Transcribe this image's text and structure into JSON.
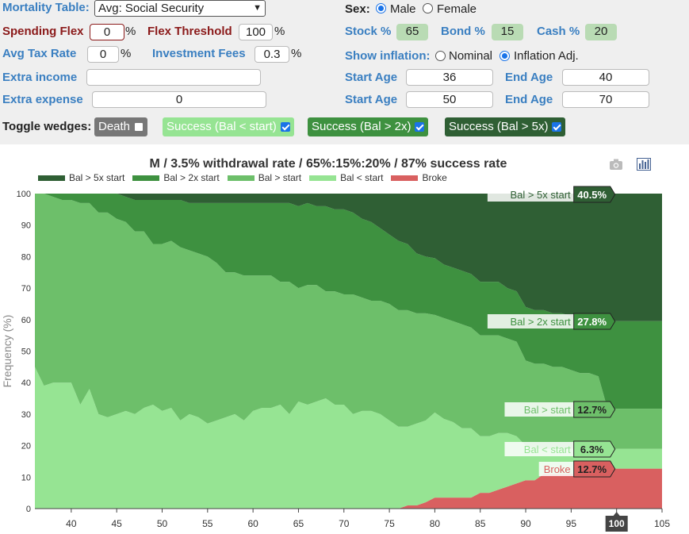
{
  "controls": {
    "mortality_label": "Mortality Table:",
    "mortality_value": "Avg: Social Security",
    "spending_flex_label": "Spending Flex",
    "spending_flex_value": "0",
    "flex_threshold_label": "Flex Threshold",
    "flex_threshold_value": "100",
    "avg_tax_label": "Avg Tax Rate",
    "avg_tax_value": "0",
    "inv_fees_label": "Investment Fees",
    "inv_fees_value": "0.3",
    "extra_income_label": "Extra income",
    "extra_income_value": "",
    "extra_expense_label": "Extra expense",
    "extra_expense_value": "0",
    "pct": "%",
    "sex_label": "Sex:",
    "sex_male": "Male",
    "sex_female": "Female",
    "stock_label": "Stock %",
    "stock_value": "65",
    "bond_label": "Bond %",
    "bond_value": "15",
    "cash_label": "Cash %",
    "cash_value": "20",
    "inflation_label": "Show inflation:",
    "inflation_nominal": "Nominal",
    "inflation_adj": "Inflation Adj.",
    "start_age_label": "Start Age",
    "end_age_label": "End Age",
    "start_age_1": "36",
    "end_age_1": "40",
    "start_age_2": "50",
    "end_age_2": "70",
    "toggle_label": "Toggle wedges:",
    "wedge_death": "Death",
    "wedge_lt_start": "Success (Bal < start)",
    "wedge_gt_2x": "Success (Bal > 2x)",
    "wedge_gt_5x": "Success (Bal > 5x)"
  },
  "colors": {
    "gt5x": "#2f5f34",
    "gt2x": "#3e9140",
    "gtstart": "#6dbf6a",
    "ltstart": "#96e493",
    "broke": "#d96060"
  },
  "icons": {
    "camera": "camera-icon",
    "chart": "bar-chart-icon"
  },
  "chart_data": {
    "type": "area",
    "title": "M / 3.5% withdrawal rate / 65%:15%:20% / 87% success rate",
    "xlabel": "",
    "ylabel": "Frequency (%)",
    "xlim": [
      36,
      105
    ],
    "ylim": [
      0,
      100
    ],
    "xticks": [
      40,
      45,
      50,
      55,
      60,
      65,
      70,
      75,
      80,
      85,
      90,
      95,
      100,
      105
    ],
    "yticks": [
      0,
      10,
      20,
      30,
      40,
      50,
      60,
      70,
      80,
      90,
      100
    ],
    "highlight_x": 100,
    "legend_position": "top-left",
    "x": [
      36,
      37,
      38,
      39,
      40,
      41,
      42,
      43,
      44,
      45,
      46,
      47,
      48,
      49,
      50,
      51,
      52,
      53,
      54,
      55,
      56,
      57,
      58,
      59,
      60,
      61,
      62,
      63,
      64,
      65,
      66,
      67,
      68,
      69,
      70,
      71,
      72,
      73,
      74,
      75,
      76,
      77,
      78,
      79,
      80,
      81,
      82,
      83,
      84,
      85,
      86,
      87,
      88,
      89,
      90,
      91,
      92,
      93,
      94,
      95,
      96,
      97,
      98,
      99,
      100,
      101,
      102,
      103,
      104,
      105
    ],
    "series": [
      {
        "name": "Broke",
        "values": [
          0,
          0,
          0,
          0,
          0,
          0,
          0,
          0,
          0,
          0,
          0,
          0,
          0,
          0,
          0,
          0,
          0,
          0,
          0,
          0,
          0,
          0,
          0,
          0,
          0,
          0,
          0,
          0,
          0,
          0,
          0,
          0,
          0,
          0,
          0,
          0,
          0,
          0,
          0,
          0,
          0,
          1,
          1,
          2,
          3.5,
          3.5,
          3.5,
          3.5,
          3.5,
          5,
          5,
          6,
          7,
          8,
          9,
          9,
          11,
          11,
          11,
          11,
          11,
          11,
          11,
          12.7,
          12.7,
          12.7,
          12.7,
          12.7,
          12.7,
          12.7
        ]
      },
      {
        "name": "Bal < start",
        "values": [
          45,
          39,
          40,
          40,
          40,
          33,
          38,
          30,
          29,
          30,
          31,
          30,
          32,
          33,
          31,
          32,
          28,
          30,
          29,
          27,
          28,
          29,
          30,
          28,
          31,
          32,
          32,
          33,
          30,
          34,
          33,
          34,
          35,
          33,
          33,
          30,
          31,
          31,
          30,
          28,
          26,
          25,
          26,
          26,
          27,
          25,
          24,
          22,
          22,
          18,
          18,
          18,
          17,
          15,
          11,
          10,
          8,
          8,
          8,
          8,
          8,
          8,
          7,
          6.3,
          6.3,
          6.3,
          6.3,
          6.3,
          6.3,
          6.3
        ]
      },
      {
        "name": "Bal > start",
        "values": [
          55,
          61,
          59,
          58,
          58,
          64,
          59,
          64,
          65,
          62,
          60,
          58,
          56,
          51,
          53,
          53,
          55,
          52,
          52,
          53,
          50,
          46,
          45,
          46,
          43,
          42,
          42,
          39,
          42,
          36,
          38,
          37,
          34,
          36,
          35,
          38,
          36,
          35,
          36,
          37,
          37,
          37,
          35,
          34,
          31,
          32,
          32,
          33,
          32,
          32,
          32,
          31,
          30,
          30,
          27,
          27,
          27,
          26,
          26,
          25,
          24,
          24,
          24,
          12.7,
          12.7,
          12.7,
          12.7,
          12.7,
          12.7,
          12.7
        ]
      },
      {
        "name": "Bal > 2x start",
        "values": [
          0,
          0,
          1,
          2,
          2,
          3,
          3,
          6,
          6,
          8,
          8,
          10,
          10,
          14,
          14,
          13,
          15,
          15,
          16,
          17,
          19,
          22,
          22,
          23,
          23,
          23,
          23,
          25,
          25,
          26,
          26,
          25,
          27,
          26,
          27,
          26,
          25,
          25,
          23,
          22,
          22,
          21,
          19,
          18,
          18,
          17,
          17,
          17,
          17,
          17,
          17,
          17,
          16,
          16,
          17,
          17,
          17,
          17,
          17,
          17,
          17,
          17,
          17,
          27.8,
          27.8,
          27.8,
          27.8,
          27.8,
          27.8,
          27.8
        ]
      },
      {
        "name": "Bal > 5x start",
        "values": [
          0,
          0,
          0,
          0,
          0,
          0,
          0,
          0,
          0,
          0,
          1,
          2,
          2,
          2,
          2,
          2,
          2,
          3,
          3,
          3,
          3,
          3,
          3,
          3,
          3,
          3,
          3,
          3,
          3,
          4,
          3,
          4,
          4,
          5,
          5,
          6,
          8,
          9,
          11,
          13,
          15,
          16,
          19,
          20,
          20.5,
          22.5,
          23.5,
          24.5,
          25.5,
          28,
          28,
          28,
          30,
          31,
          36,
          37,
          37,
          38,
          38,
          39,
          40,
          40,
          41,
          40.5,
          40.5,
          40.5,
          40.5,
          40.5,
          40.5,
          40.5
        ]
      }
    ],
    "hover_labels": [
      {
        "series": "Bal > 5x start",
        "text": "Bal > 5x start",
        "value": "40.5%"
      },
      {
        "series": "Bal > 2x start",
        "text": "Bal > 2x start",
        "value": "27.8%"
      },
      {
        "series": "Bal > start",
        "text": "Bal > start",
        "value": "12.7%"
      },
      {
        "series": "Bal < start",
        "text": "Bal < start",
        "value": "6.3%"
      },
      {
        "series": "Broke",
        "text": "Broke",
        "value": "12.7%"
      }
    ],
    "legend": [
      {
        "series": "Bal > 5x start",
        "label": "Bal > 5x start"
      },
      {
        "series": "Bal > 2x start",
        "label": "Bal > 2x start"
      },
      {
        "series": "Bal > start",
        "label": "Bal > start"
      },
      {
        "series": "Bal < start",
        "label": "Bal < start"
      },
      {
        "series": "Broke",
        "label": "Broke"
      }
    ]
  }
}
